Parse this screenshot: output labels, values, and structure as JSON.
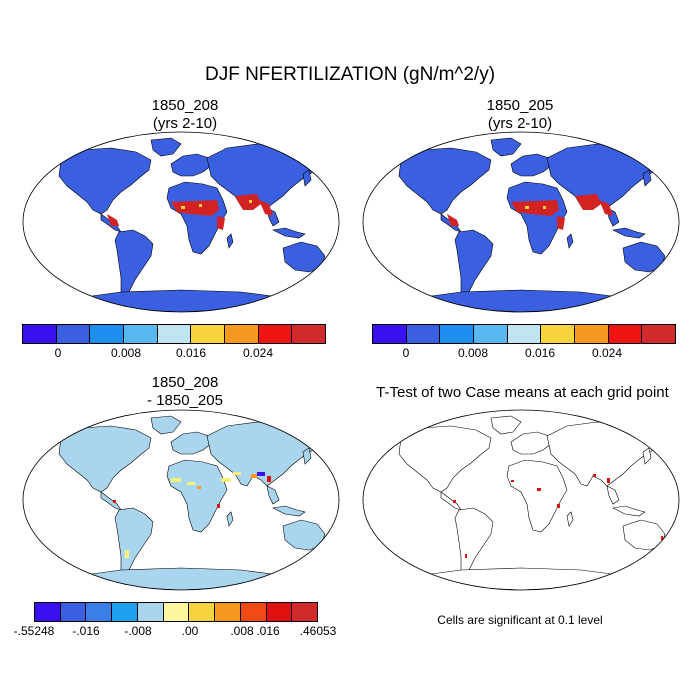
{
  "title": "DJF NFERTILIZATION (gN/m^2/y)",
  "panels": {
    "p1": {
      "title": "1850_208",
      "subtitle": "(yrs 2-10)"
    },
    "p2": {
      "title": "1850_205",
      "subtitle": "(yrs 2-10)"
    },
    "p3": {
      "title": "1850_208",
      "subtitle": "- 1850_205"
    },
    "p4": {
      "title": "T-Test of two Case means at each grid point"
    }
  },
  "colorbar_top": {
    "colors": [
      "#3a10f0",
      "#3a5fe0",
      "#1e8ff0",
      "#5ab8f0",
      "#bfe4f2",
      "#f7d340",
      "#f59a1f",
      "#f01414",
      "#d22a2a"
    ],
    "labels": [
      "0",
      "0.008",
      "0.016",
      "0.024"
    ]
  },
  "colorbar_diff": {
    "colors": [
      "#3a10f0",
      "#3a5fe0",
      "#3a7ee6",
      "#1e9ff0",
      "#a9d6ee",
      "#fdf8a0",
      "#f7d340",
      "#f59a1f",
      "#f24a14",
      "#e01010",
      "#d22a2a"
    ],
    "labels": [
      "-.55248",
      "-.016",
      "-.008",
      ".00",
      ".008",
      ".016",
      ".46053"
    ]
  },
  "note": "Cells are significant at 0.1 level",
  "colors": {
    "ocean": "#ffffff",
    "land_blue": "#3a5fe0",
    "land_lightblue": "#a9d6ee",
    "red": "#d22222",
    "yellow": "#f7d340"
  }
}
